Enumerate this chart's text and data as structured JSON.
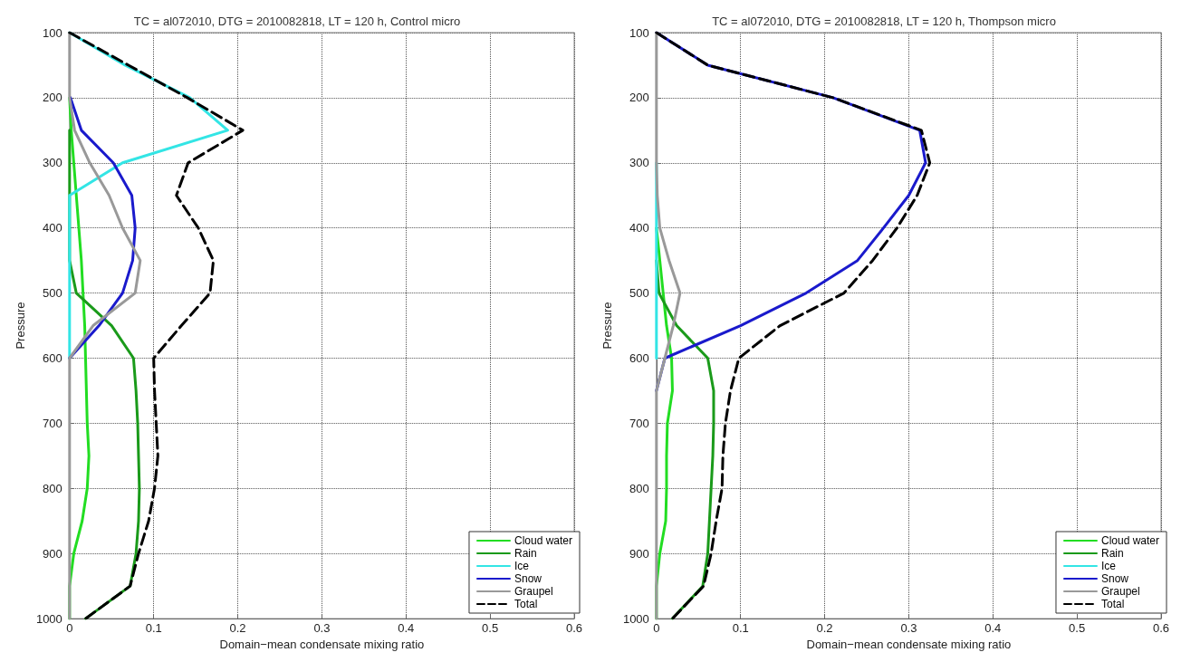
{
  "chart_data": [
    {
      "type": "line",
      "title": "TC = al072010, DTG = 2010082818, LT = 120 h, Control micro",
      "xlabel": "Domain−mean condensate mixing ratio",
      "ylabel": "Pressure",
      "xlim": [
        0,
        0.6
      ],
      "xticks": [
        0,
        0.1,
        0.2,
        0.3,
        0.4,
        0.5,
        0.6
      ],
      "ylim": [
        1000,
        100
      ],
      "yticks": [
        100,
        200,
        300,
        400,
        500,
        600,
        700,
        800,
        900,
        1000
      ],
      "grid": true,
      "legend": "bottom right",
      "marker": "none",
      "series": [
        {
          "name": "Cloud water",
          "color": "#22dd22",
          "line_style": "solid",
          "x": [
            0,
            0.002,
            0.005,
            0.008,
            0.011,
            0.014,
            0.016,
            0.018,
            0.019,
            0.02,
            0.021,
            0.023,
            0.021,
            0.015,
            0.005,
            0,
            0
          ],
          "values": [
            200,
            250,
            300,
            350,
            400,
            450,
            500,
            550,
            600,
            650,
            700,
            750,
            800,
            850,
            900,
            950,
            1000
          ]
        },
        {
          "name": "Rain",
          "color": "#1a9a1a",
          "line_style": "solid",
          "x": [
            0,
            0,
            0,
            0,
            0,
            0.008,
            0.05,
            0.076,
            0.079,
            0.081,
            0.082,
            0.083,
            0.082,
            0.079,
            0.072,
            0.019
          ],
          "values": [
            250,
            300,
            350,
            400,
            450,
            500,
            550,
            600,
            650,
            700,
            750,
            800,
            850,
            900,
            950,
            1000
          ]
        },
        {
          "name": "Ice",
          "color": "#33e5e5",
          "line_style": "solid",
          "x": [
            0,
            0.066,
            0.143,
            0.188,
            0.063,
            0,
            0,
            0,
            0,
            0,
            0
          ],
          "values": [
            100,
            150,
            200,
            250,
            300,
            350,
            400,
            450,
            500,
            550,
            600
          ]
        },
        {
          "name": "Snow",
          "color": "#1a1acc",
          "line_style": "solid",
          "x": [
            0.001,
            0.014,
            0.052,
            0.074,
            0.078,
            0.075,
            0.063,
            0.035,
            0
          ],
          "values": [
            200,
            250,
            300,
            350,
            400,
            450,
            500,
            550,
            600
          ]
        },
        {
          "name": "Graupel",
          "color": "#999999",
          "line_style": "solid",
          "x": [
            0,
            0,
            0,
            0.006,
            0.024,
            0.047,
            0.063,
            0.084,
            0.078,
            0.028,
            0,
            0,
            0,
            0,
            0,
            0,
            0,
            0,
            0
          ],
          "values": [
            100,
            150,
            200,
            250,
            300,
            350,
            400,
            450,
            500,
            550,
            600,
            650,
            700,
            750,
            800,
            850,
            900,
            950,
            1000
          ]
        },
        {
          "name": "Total",
          "color": "#000000",
          "line_style": "dashed",
          "x": [
            0,
            0.07,
            0.14,
            0.206,
            0.141,
            0.127,
            0.153,
            0.171,
            0.167,
            0.133,
            0.1,
            0.101,
            0.103,
            0.105,
            0.101,
            0.094,
            0.082,
            0.072,
            0.019
          ],
          "values": [
            100,
            150,
            200,
            250,
            300,
            350,
            400,
            450,
            500,
            550,
            600,
            650,
            700,
            750,
            800,
            850,
            900,
            950,
            1000
          ]
        }
      ]
    },
    {
      "type": "line",
      "title": "TC = al072010, DTG = 2010082818, LT = 120 h, Thompson micro",
      "xlabel": "Domain−mean condensate mixing ratio",
      "ylabel": "Pressure",
      "xlim": [
        0,
        0.6
      ],
      "xticks": [
        0,
        0.1,
        0.2,
        0.3,
        0.4,
        0.5,
        0.6
      ],
      "ylim": [
        1000,
        100
      ],
      "yticks": [
        100,
        200,
        300,
        400,
        500,
        600,
        700,
        800,
        900,
        1000
      ],
      "grid": true,
      "legend": "bottom right",
      "marker": "none",
      "series": [
        {
          "name": "Cloud water",
          "color": "#22dd22",
          "line_style": "solid",
          "x": [
            0,
            0.004,
            0.008,
            0.012,
            0.018,
            0.019,
            0.013,
            0.012,
            0.012,
            0.011,
            0.004,
            0,
            0
          ],
          "values": [
            400,
            450,
            500,
            550,
            600,
            650,
            700,
            750,
            800,
            850,
            900,
            950,
            1000
          ]
        },
        {
          "name": "Rain",
          "color": "#1a9a1a",
          "line_style": "solid",
          "x": [
            0,
            0.003,
            0.024,
            0.061,
            0.068,
            0.068,
            0.067,
            0.065,
            0.063,
            0.061,
            0.055,
            0.019
          ],
          "values": [
            450,
            500,
            550,
            600,
            650,
            700,
            750,
            800,
            850,
            900,
            950,
            1000
          ]
        },
        {
          "name": "Ice",
          "color": "#33e5e5",
          "line_style": "solid",
          "x": [
            0,
            0,
            0,
            0,
            0,
            0,
            0
          ],
          "values": [
            300,
            350,
            400,
            450,
            500,
            550,
            600
          ]
        },
        {
          "name": "Snow",
          "color": "#1a1acc",
          "line_style": "solid",
          "x": [
            0,
            0.061,
            0.21,
            0.313,
            0.32,
            0.3,
            0.27,
            0.239,
            0.178,
            0.1,
            0.01,
            0
          ],
          "values": [
            100,
            150,
            200,
            250,
            300,
            350,
            400,
            450,
            500,
            550,
            600,
            650
          ]
        },
        {
          "name": "Graupel",
          "color": "#999999",
          "line_style": "solid",
          "x": [
            0,
            0,
            0,
            0,
            0,
            0.001,
            0.004,
            0.015,
            0.028,
            0.02,
            0.01,
            0,
            0,
            0,
            0,
            0,
            0,
            0,
            0
          ],
          "values": [
            100,
            150,
            200,
            250,
            300,
            350,
            400,
            450,
            500,
            550,
            600,
            650,
            700,
            750,
            800,
            850,
            900,
            950,
            1000
          ]
        },
        {
          "name": "Total",
          "color": "#000000",
          "line_style": "dashed",
          "x": [
            0,
            0.061,
            0.21,
            0.315,
            0.325,
            0.31,
            0.286,
            0.257,
            0.223,
            0.147,
            0.098,
            0.088,
            0.082,
            0.079,
            0.078,
            0.071,
            0.065,
            0.056,
            0.019
          ],
          "values": [
            100,
            150,
            200,
            250,
            300,
            350,
            400,
            450,
            500,
            550,
            600,
            650,
            700,
            750,
            800,
            850,
            900,
            950,
            1000
          ]
        }
      ]
    }
  ]
}
